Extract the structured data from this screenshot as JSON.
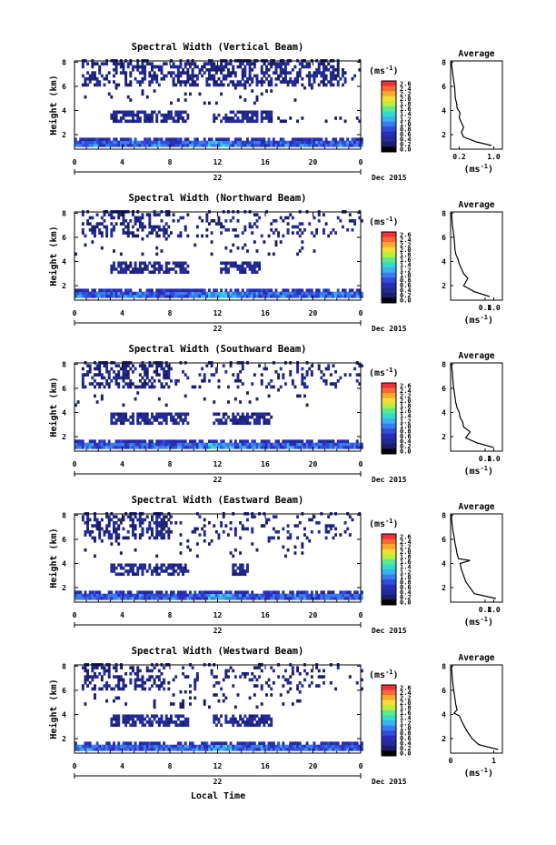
{
  "page": {
    "xlabel": "Local Time"
  },
  "colorbar": {
    "unit_base": "(ms",
    "unit_exp": "-1",
    "unit_close": ")",
    "ticks": [
      "2.6",
      "2.4",
      "2.2",
      "2.0",
      "1.8",
      "1.6",
      "1.4",
      "1.2",
      "1.0",
      "0.8",
      "0.6",
      "0.4",
      "0.2",
      "0.0"
    ],
    "palette": [
      "#f0303a",
      "#f86a30",
      "#fcaa2e",
      "#f6dd38",
      "#b9ef3c",
      "#5fe98a",
      "#32dcc8",
      "#3ab2f0",
      "#3a7cee",
      "#2f4ed8",
      "#2a2dbc",
      "#222b96",
      "#1b1f6a",
      "#000000"
    ]
  },
  "chart_data": [
    {
      "type": "heatmap",
      "title": "Spectral Width (Vertical Beam)",
      "ylabel": "Height (km)",
      "x_ticks": [
        "0",
        "4",
        "8",
        "12",
        "16",
        "20",
        "0"
      ],
      "x_range": [
        0,
        24
      ],
      "y_ticks": [
        "8",
        "6",
        "4",
        "2"
      ],
      "y_range": [
        0.8,
        8.1
      ],
      "date_day": "22",
      "date_label": "Dec 2015",
      "avg": {
        "title": "Average",
        "x_ticks": [
          "0.2",
          "1.0"
        ],
        "x_range": [
          0,
          1.2
        ],
        "unit_base": "(ms",
        "unit_exp": "-1",
        "unit_close": ")",
        "y_ticks": [
          "8",
          "6",
          "4",
          "2"
        ],
        "y_range": [
          0.8,
          8.1
        ],
        "points": [
          [
            0.95,
            1.1
          ],
          [
            0.6,
            1.4
          ],
          [
            0.3,
            1.8
          ],
          [
            0.25,
            2.2
          ],
          [
            0.3,
            2.6
          ],
          [
            0.25,
            3.0
          ],
          [
            0.2,
            3.4
          ],
          [
            0.22,
            3.8
          ],
          [
            0.15,
            4.2
          ],
          [
            0.14,
            4.6
          ],
          [
            0.11,
            5.0
          ],
          [
            0.1,
            5.5
          ],
          [
            0.09,
            6.0
          ],
          [
            0.07,
            6.5
          ],
          [
            0.05,
            7.0
          ],
          [
            0.03,
            7.6
          ],
          [
            0.02,
            8.0
          ]
        ]
      }
    },
    {
      "type": "heatmap",
      "title": "Spectral Width (Northward Beam)",
      "ylabel": "Height (km)",
      "x_ticks": [
        "0",
        "4",
        "8",
        "12",
        "16",
        "20",
        "0"
      ],
      "x_range": [
        0,
        24
      ],
      "y_ticks": [
        "8",
        "6",
        "4",
        "2"
      ],
      "y_range": [
        0.8,
        8.1
      ],
      "date_day": "22",
      "date_label": "Dec 2015",
      "avg": {
        "title": "Average",
        "x_ticks": [
          "0.8",
          "1.0"
        ],
        "x_range": [
          0,
          1.2
        ],
        "unit_base": "(ms",
        "unit_exp": "-1",
        "unit_close": ")",
        "y_ticks": [
          "8",
          "6",
          "4",
          "2"
        ],
        "y_range": [
          0.8,
          8.1
        ],
        "points": [
          [
            0.9,
            1.1
          ],
          [
            0.55,
            1.5
          ],
          [
            0.3,
            2.0
          ],
          [
            0.4,
            2.6
          ],
          [
            0.3,
            3.0
          ],
          [
            0.25,
            3.4
          ],
          [
            0.2,
            3.8
          ],
          [
            0.17,
            4.2
          ],
          [
            0.12,
            4.6
          ],
          [
            0.1,
            5.0
          ],
          [
            0.09,
            5.5
          ],
          [
            0.08,
            6.0
          ],
          [
            0.06,
            6.5
          ],
          [
            0.04,
            7.0
          ],
          [
            0.03,
            7.6
          ],
          [
            0.02,
            8.0
          ]
        ]
      }
    },
    {
      "type": "heatmap",
      "title": "Spectral Width (Southward Beam)",
      "ylabel": "Height (km)",
      "x_ticks": [
        "0",
        "4",
        "8",
        "12",
        "16",
        "20",
        "0"
      ],
      "x_range": [
        0,
        24
      ],
      "y_ticks": [
        "8",
        "6",
        "4",
        "2"
      ],
      "y_range": [
        0.8,
        8.1
      ],
      "date_day": "22",
      "date_label": "Dec 2015",
      "avg": {
        "title": "Average",
        "x_ticks": [
          "0.8",
          "1.0"
        ],
        "x_range": [
          0,
          1.2
        ],
        "unit_base": "(ms",
        "unit_exp": "-1",
        "unit_close": ")",
        "y_ticks": [
          "8",
          "6",
          "4",
          "2"
        ],
        "y_range": [
          0.8,
          8.1
        ],
        "points": [
          [
            1.0,
            1.1
          ],
          [
            0.6,
            1.5
          ],
          [
            0.35,
            1.9
          ],
          [
            0.45,
            2.4
          ],
          [
            0.3,
            2.8
          ],
          [
            0.28,
            3.2
          ],
          [
            0.22,
            3.6
          ],
          [
            0.2,
            4.0
          ],
          [
            0.15,
            4.4
          ],
          [
            0.12,
            4.8
          ],
          [
            0.1,
            5.3
          ],
          [
            0.08,
            5.8
          ],
          [
            0.06,
            6.3
          ],
          [
            0.05,
            6.8
          ],
          [
            0.04,
            7.3
          ],
          [
            0.02,
            8.0
          ]
        ]
      }
    },
    {
      "type": "heatmap",
      "title": "Spectral Width (Eastward Beam)",
      "ylabel": "Height (km)",
      "x_ticks": [
        "0",
        "4",
        "8",
        "12",
        "16",
        "20",
        "0"
      ],
      "x_range": [
        0,
        24
      ],
      "y_ticks": [
        "8",
        "6",
        "4",
        "2"
      ],
      "y_range": [
        0.8,
        8.1
      ],
      "date_day": "22",
      "date_label": "Dec 2015",
      "avg": {
        "title": "Average",
        "x_ticks": [
          "0.8",
          "1.0"
        ],
        "x_range": [
          0,
          1.2
        ],
        "unit_base": "(ms",
        "unit_exp": "-1",
        "unit_close": ")",
        "y_ticks": [
          "8",
          "6",
          "4",
          "2"
        ],
        "y_range": [
          0.8,
          8.1
        ],
        "points": [
          [
            1.05,
            1.1
          ],
          [
            0.55,
            1.5
          ],
          [
            0.45,
            2.0
          ],
          [
            0.35,
            2.5
          ],
          [
            0.3,
            3.0
          ],
          [
            0.25,
            3.5
          ],
          [
            0.22,
            4.0
          ],
          [
            0.45,
            4.25
          ],
          [
            0.18,
            4.4
          ],
          [
            0.15,
            4.8
          ],
          [
            0.13,
            5.2
          ],
          [
            0.1,
            5.7
          ],
          [
            0.08,
            6.2
          ],
          [
            0.05,
            6.8
          ],
          [
            0.03,
            7.4
          ],
          [
            0.02,
            8.0
          ]
        ]
      }
    },
    {
      "type": "heatmap",
      "title": "Spectral Width (Westward Beam)",
      "ylabel": "Height (km)",
      "x_ticks": [
        "0",
        "4",
        "8",
        "12",
        "16",
        "20",
        "0"
      ],
      "x_range": [
        0,
        24
      ],
      "y_ticks": [
        "8",
        "6",
        "4",
        "2"
      ],
      "y_range": [
        0.8,
        8.1
      ],
      "date_day": "22",
      "date_label": "Dec 2015",
      "avg": {
        "title": "Average",
        "x_ticks": [
          "0",
          "1"
        ],
        "x_range": [
          0,
          1.2
        ],
        "unit_base": "(ms",
        "unit_exp": "-1",
        "unit_close": ")",
        "y_ticks": [
          "8",
          "6",
          "4",
          "2"
        ],
        "y_range": [
          0.8,
          8.1
        ],
        "points": [
          [
            1.1,
            1.1
          ],
          [
            0.65,
            1.5
          ],
          [
            0.5,
            2.0
          ],
          [
            0.4,
            2.5
          ],
          [
            0.32,
            3.0
          ],
          [
            0.25,
            3.5
          ],
          [
            0.2,
            3.9
          ],
          [
            0.08,
            4.1
          ],
          [
            0.15,
            4.4
          ],
          [
            0.12,
            4.8
          ],
          [
            0.1,
            5.3
          ],
          [
            0.08,
            5.8
          ],
          [
            0.06,
            6.3
          ],
          [
            0.04,
            6.9
          ],
          [
            0.03,
            7.5
          ],
          [
            0.02,
            8.0
          ]
        ]
      }
    }
  ]
}
